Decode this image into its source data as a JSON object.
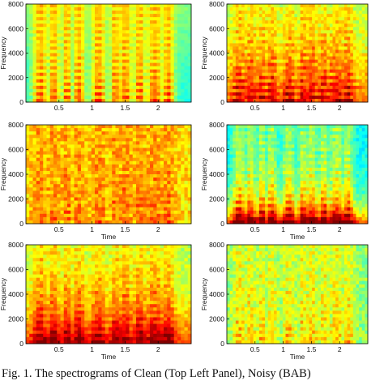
{
  "caption": "Fig. 1. The spectrograms of Clean (Top Left Panel), Noisy (BAB)",
  "colors": {
    "background": "#ffffff",
    "axis": "#000000",
    "colormap": "jet"
  },
  "chart_data": [
    {
      "type": "heatmap",
      "panel": "top-left",
      "ylabel": "Frequency",
      "xlabel": "",
      "x_ticks": [
        "0.5",
        "1",
        "1.5",
        "2"
      ],
      "y_ticks": [
        "0",
        "2000",
        "4000",
        "6000",
        "8000"
      ],
      "xlim": [
        0,
        2.5
      ],
      "ylim": [
        0,
        8000
      ],
      "grid": false
    },
    {
      "type": "heatmap",
      "panel": "top-right",
      "ylabel": "Frequency",
      "xlabel": "",
      "x_ticks": [
        "0.5",
        "1",
        "1.5",
        "2"
      ],
      "y_ticks": [
        "0",
        "2000",
        "4000",
        "6000",
        "8000"
      ],
      "xlim": [
        0,
        2.5
      ],
      "ylim": [
        0,
        8000
      ],
      "grid": false
    },
    {
      "type": "heatmap",
      "panel": "middle-left",
      "ylabel": "Frequency",
      "xlabel": "Time",
      "x_ticks": [
        "0.5",
        "1",
        "1.5",
        "2"
      ],
      "y_ticks": [
        "0",
        "2000",
        "4000",
        "6000",
        "8000"
      ],
      "xlim": [
        0,
        2.5
      ],
      "ylim": [
        0,
        8000
      ],
      "grid": false
    },
    {
      "type": "heatmap",
      "panel": "middle-right",
      "ylabel": "Frequency",
      "xlabel": "Time",
      "x_ticks": [
        "0.5",
        "1",
        "1.5",
        "2"
      ],
      "y_ticks": [
        "0",
        "2000",
        "4000",
        "6000",
        "8000"
      ],
      "xlim": [
        0,
        2.5
      ],
      "ylim": [
        0,
        8000
      ],
      "grid": false
    },
    {
      "type": "heatmap",
      "panel": "bottom-left",
      "ylabel": "Frequency",
      "xlabel": "Time",
      "x_ticks": [
        "0.5",
        "1",
        "1.5",
        "2"
      ],
      "y_ticks": [
        "0",
        "2000",
        "4000",
        "6000",
        "8000"
      ],
      "xlim": [
        0,
        2.5
      ],
      "ylim": [
        0,
        8000
      ],
      "grid": false
    },
    {
      "type": "heatmap",
      "panel": "bottom-right",
      "ylabel": "Frequency",
      "xlabel": "Time",
      "x_ticks": [
        "0.5",
        "1",
        "1.5",
        "2"
      ],
      "y_ticks": [
        "0",
        "2000",
        "4000",
        "6000",
        "8000"
      ],
      "xlim": [
        0,
        2.5
      ],
      "ylim": [
        0,
        8000
      ],
      "grid": false
    }
  ]
}
